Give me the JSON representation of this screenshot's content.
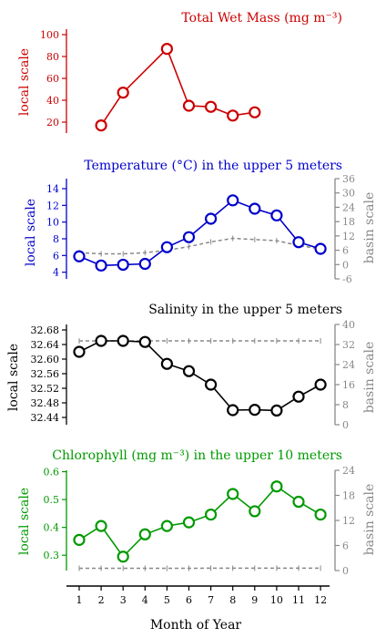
{
  "figure": {
    "xlabel": "Month of Year",
    "x_ticks": [
      1,
      2,
      3,
      4,
      5,
      6,
      7,
      8,
      9,
      10,
      11,
      12
    ]
  },
  "chart_data": [
    {
      "type": "line",
      "title": "Total Wet Mass (mg m⁻³)",
      "color": "#cc0000",
      "ylabel": "local scale",
      "ylim": [
        10,
        105
      ],
      "yticks": [
        20,
        40,
        60,
        80,
        100
      ],
      "ytick_labels": [
        "20",
        "40",
        "60",
        "80",
        "100"
      ],
      "series": [
        {
          "x": [
            2,
            3,
            5,
            6,
            7,
            8,
            9
          ],
          "values": [
            17,
            47,
            87,
            35,
            34,
            26,
            29
          ]
        }
      ]
    },
    {
      "type": "line",
      "title": "Temperature (°C) in the upper 5 meters",
      "color": "#0000cc",
      "ylabel": "local scale",
      "ylim": [
        3.2,
        15.2
      ],
      "yticks": [
        4,
        6,
        8,
        10,
        12,
        14
      ],
      "ytick_labels": [
        "4",
        "6",
        "8",
        "10",
        "12",
        "14"
      ],
      "ylabel2": "basin scale",
      "ylim2": [
        -6,
        36
      ],
      "yticks2": [
        -6,
        0,
        6,
        12,
        18,
        24,
        30,
        36
      ],
      "ytick_labels2": [
        "-6",
        "0",
        "6",
        "12",
        "18",
        "24",
        "30",
        "36"
      ],
      "series": [
        {
          "x": [
            1,
            2,
            3,
            4,
            5,
            6,
            7,
            8,
            9,
            10,
            11,
            12
          ],
          "values": [
            5.9,
            4.8,
            4.9,
            5.0,
            7.0,
            8.2,
            10.4,
            12.6,
            11.6,
            10.8,
            7.6,
            6.8
          ]
        }
      ],
      "basin_series": {
        "x": [
          1,
          2,
          3,
          4,
          5,
          6,
          7,
          8,
          9,
          10,
          11,
          12
        ],
        "values": [
          5,
          4.5,
          4.5,
          5,
          6,
          7.5,
          9.5,
          11,
          10.5,
          10,
          8,
          6.5
        ]
      }
    },
    {
      "type": "line",
      "title": "Salinity in the upper 5 meters",
      "color": "#000000",
      "ylabel": "local scale",
      "ylim": [
        32.42,
        32.695
      ],
      "yticks": [
        32.44,
        32.48,
        32.52,
        32.56,
        32.6,
        32.64,
        32.68
      ],
      "ytick_labels": [
        "32.44",
        "32.48",
        "32.52",
        "32.56",
        "32.60",
        "32.64",
        "32.68"
      ],
      "ylabel2": "basin scale",
      "ylim2": [
        0,
        40
      ],
      "yticks2": [
        0,
        8,
        16,
        24,
        32,
        40
      ],
      "ytick_labels2": [
        "0",
        "8",
        "16",
        "24",
        "32",
        "40"
      ],
      "series": [
        {
          "x": [
            1,
            2,
            3,
            4,
            5,
            6,
            7,
            8,
            9,
            10,
            11,
            12
          ],
          "values": [
            32.62,
            32.65,
            32.65,
            32.647,
            32.587,
            32.567,
            32.53,
            32.46,
            32.461,
            32.459,
            32.497,
            32.53
          ]
        }
      ],
      "basin_series": {
        "x": [
          1,
          2,
          3,
          4,
          5,
          6,
          7,
          8,
          9,
          10,
          11,
          12
        ],
        "values": [
          32.5,
          32.5,
          32.5,
          32.5,
          32.5,
          32.5,
          32.5,
          32.5,
          32.5,
          32.5,
          32.5,
          32.5
        ]
      }
    },
    {
      "type": "line",
      "title": "Chlorophyll (mg m⁻³) in the upper 10 meters",
      "color": "#009900",
      "ylabel": "local scale",
      "ylim": [
        0.245,
        0.605
      ],
      "yticks": [
        0.3,
        0.4,
        0.5,
        0.6
      ],
      "ytick_labels": [
        "0.3",
        "0.4",
        "0.5",
        "0.6"
      ],
      "ylabel2": "basin scale",
      "ylim2": [
        0,
        24
      ],
      "yticks2": [
        0,
        6,
        12,
        18,
        24
      ],
      "ytick_labels2": [
        "0",
        "6",
        "12",
        "18",
        "24"
      ],
      "series": [
        {
          "x": [
            1,
            2,
            3,
            4,
            5,
            6,
            7,
            8,
            9,
            10,
            11,
            12
          ],
          "values": [
            0.355,
            0.405,
            0.295,
            0.375,
            0.405,
            0.418,
            0.446,
            0.52,
            0.458,
            0.547,
            0.492,
            0.446
          ]
        }
      ],
      "basin_series": {
        "x": [
          1,
          2,
          3,
          4,
          5,
          6,
          7,
          8,
          9,
          10,
          11,
          12
        ],
        "values": [
          0.5,
          0.5,
          0.5,
          0.5,
          0.5,
          0.5,
          0.6,
          0.6,
          0.6,
          0.6,
          0.6,
          0.6
        ]
      }
    }
  ]
}
